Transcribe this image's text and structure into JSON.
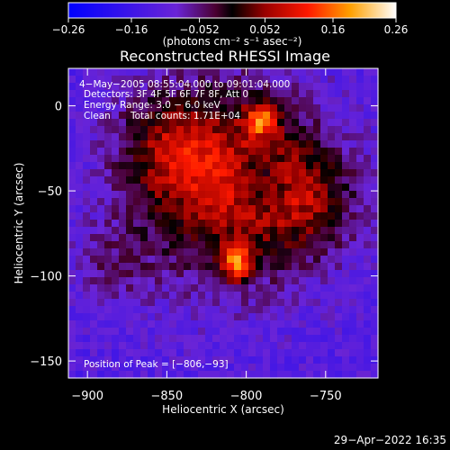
{
  "chart_data": {
    "type": "heatmap",
    "title": "Reconstructed RHESSI Image",
    "xlabel": "Heliocentric X (arcsec)",
    "ylabel": "Heliocentric Y (arcsec)",
    "xlim": [
      -912,
      -717
    ],
    "ylim": [
      -160,
      22
    ],
    "x_ticks": [
      {
        "value": -900,
        "label": "−900"
      },
      {
        "value": -850,
        "label": "−850"
      },
      {
        "value": -800,
        "label": "−800"
      },
      {
        "value": -750,
        "label": "−750"
      }
    ],
    "y_ticks": [
      {
        "value": 0,
        "label": "0"
      },
      {
        "value": -50,
        "label": "−50"
      },
      {
        "value": -100,
        "label": "−100"
      },
      {
        "value": -150,
        "label": "−150"
      }
    ],
    "colorbar": {
      "range": [
        -0.26,
        0.26
      ],
      "ticks": [
        {
          "value": -0.26,
          "label": "−0.26"
        },
        {
          "value": -0.16,
          "label": "−0.16"
        },
        {
          "value": -0.052,
          "label": "−0.052"
        },
        {
          "value": 0.052,
          "label": "0.052"
        },
        {
          "value": 0.16,
          "label": "0.16"
        },
        {
          "value": 0.26,
          "label": "0.26"
        }
      ],
      "unit_label": "(photons cm⁻² s⁻¹ asec⁻²)"
    },
    "annotations": [
      "4−May−2005 08:55:04.000 to 09:01:04.000",
      "Detectors: 3F 4F 5F 6F 7F 8F, Att 0",
      "Energy Range: 3.0 − 6.0 keV",
      "Clean",
      "Total counts: 1.71E+04",
      "Position of Peak = [−806,−93]"
    ],
    "sources": [
      {
        "x": -790,
        "y": -8,
        "peak": 0.24
      },
      {
        "x": -806,
        "y": -93,
        "peak": 0.26
      }
    ]
  },
  "footer": {
    "timestamp": "29−Apr−2022 16:35"
  },
  "colors": {
    "background": "#000000",
    "text": "#ffffff"
  }
}
